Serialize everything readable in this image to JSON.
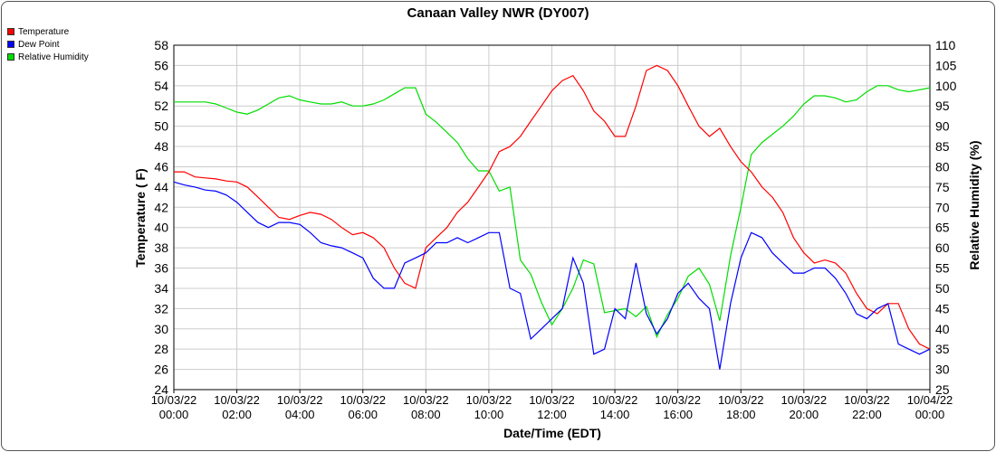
{
  "chart_data": {
    "type": "line",
    "title": "Canaan Valley NWR (DY007)",
    "xlabel": "Date/Time (EDT)",
    "ylabel_left": "Temperature ( F)",
    "ylabel_right": "Relative Humidity (%)",
    "ylim_left": [
      24,
      58
    ],
    "ylim_right": [
      25,
      110
    ],
    "yticks_left": [
      24,
      26,
      28,
      30,
      32,
      34,
      36,
      38,
      40,
      42,
      44,
      46,
      48,
      50,
      52,
      54,
      56,
      58
    ],
    "yticks_right": [
      25,
      30,
      35,
      40,
      45,
      50,
      55,
      60,
      65,
      70,
      75,
      80,
      85,
      90,
      95,
      100,
      105,
      110
    ],
    "xlim": [
      0,
      24
    ],
    "xticks": [
      {
        "x": 0,
        "date": "10/03/22",
        "time": "00:00"
      },
      {
        "x": 2,
        "date": "10/03/22",
        "time": "02:00"
      },
      {
        "x": 4,
        "date": "10/03/22",
        "time": "04:00"
      },
      {
        "x": 6,
        "date": "10/03/22",
        "time": "06:00"
      },
      {
        "x": 8,
        "date": "10/03/22",
        "time": "08:00"
      },
      {
        "x": 10,
        "date": "10/03/22",
        "time": "10:00"
      },
      {
        "x": 12,
        "date": "10/03/22",
        "time": "12:00"
      },
      {
        "x": 14,
        "date": "10/03/22",
        "time": "14:00"
      },
      {
        "x": 16,
        "date": "10/03/22",
        "time": "16:00"
      },
      {
        "x": 18,
        "date": "10/03/22",
        "time": "18:00"
      },
      {
        "x": 20,
        "date": "10/03/22",
        "time": "20:00"
      },
      {
        "x": 22,
        "date": "10/03/22",
        "time": "22:00"
      },
      {
        "x": 24,
        "date": "10/04/22",
        "time": "00:00"
      }
    ],
    "grid": true,
    "legend_position": "top-left",
    "series": [
      {
        "name": "Temperature",
        "axis": "left",
        "color": "#ff0000",
        "x": [
          0,
          0.33,
          0.67,
          1,
          1.33,
          1.67,
          2,
          2.33,
          2.67,
          3,
          3.33,
          3.67,
          4,
          4.33,
          4.67,
          5,
          5.33,
          5.67,
          6,
          6.33,
          6.67,
          7,
          7.33,
          7.67,
          8,
          8.33,
          8.67,
          9,
          9.33,
          9.67,
          10,
          10.33,
          10.67,
          11,
          11.33,
          11.67,
          12,
          12.33,
          12.67,
          13,
          13.33,
          13.67,
          14,
          14.33,
          14.67,
          15,
          15.33,
          15.67,
          16,
          16.33,
          16.67,
          17,
          17.33,
          17.67,
          18,
          18.33,
          18.67,
          19,
          19.33,
          19.67,
          20,
          20.33,
          20.67,
          21,
          21.33,
          21.67,
          22,
          22.33,
          22.67,
          23,
          23.33,
          23.67,
          24
        ],
        "y": [
          45.5,
          45.5,
          45.0,
          44.9,
          44.8,
          44.6,
          44.5,
          44.0,
          43.0,
          42.0,
          41.0,
          40.8,
          41.2,
          41.5,
          41.3,
          40.8,
          40.0,
          39.3,
          39.5,
          39.0,
          38.0,
          36.0,
          34.5,
          34.0,
          38.0,
          39.0,
          40.0,
          41.5,
          42.5,
          44.0,
          45.5,
          47.5,
          48.0,
          49.0,
          50.5,
          52.0,
          53.5,
          54.5,
          55.0,
          53.5,
          51.5,
          50.5,
          49.0,
          49.0,
          52.0,
          55.5,
          56.0,
          55.5,
          54.0,
          52.0,
          50.0,
          49.0,
          49.8,
          48.0,
          46.5,
          45.5,
          44.0,
          43.0,
          41.5,
          39.0,
          37.5,
          36.5,
          36.8,
          36.5,
          35.5,
          33.5,
          32.0,
          31.5,
          32.5,
          32.5,
          30.0,
          28.5,
          28.0
        ]
      },
      {
        "name": "Dew Point",
        "axis": "left",
        "color": "#0000ff",
        "x": [
          0,
          0.33,
          0.67,
          1,
          1.33,
          1.67,
          2,
          2.33,
          2.67,
          3,
          3.33,
          3.67,
          4,
          4.33,
          4.67,
          5,
          5.33,
          5.67,
          6,
          6.33,
          6.67,
          7,
          7.33,
          7.67,
          8,
          8.33,
          8.67,
          9,
          9.33,
          9.67,
          10,
          10.33,
          10.67,
          11,
          11.33,
          11.67,
          12,
          12.33,
          12.67,
          13,
          13.33,
          13.67,
          14,
          14.33,
          14.67,
          15,
          15.33,
          15.67,
          16,
          16.33,
          16.67,
          17,
          17.33,
          17.67,
          18,
          18.33,
          18.67,
          19,
          19.33,
          19.67,
          20,
          20.33,
          20.67,
          21,
          21.33,
          21.67,
          22,
          22.33,
          22.67,
          23,
          23.33,
          23.67,
          24
        ],
        "y": [
          44.5,
          44.2,
          44.0,
          43.7,
          43.6,
          43.2,
          42.5,
          41.5,
          40.5,
          40.0,
          40.5,
          40.5,
          40.3,
          39.5,
          38.5,
          38.2,
          38.0,
          37.5,
          37.0,
          35.0,
          34.0,
          34.0,
          36.5,
          37.0,
          37.5,
          38.5,
          38.5,
          39.0,
          38.5,
          39.0,
          39.5,
          39.5,
          34.0,
          33.5,
          29.0,
          30.0,
          31.0,
          32.0,
          37.0,
          34.5,
          27.5,
          28.0,
          32.0,
          31.0,
          36.5,
          31.5,
          29.5,
          31.0,
          33.5,
          34.5,
          33.0,
          32.0,
          26.0,
          32.5,
          37.0,
          39.5,
          39.0,
          37.5,
          36.5,
          35.5,
          35.5,
          36.0,
          36.0,
          35.0,
          33.5,
          31.5,
          31.0,
          32.0,
          32.5,
          28.5,
          28.0,
          27.5,
          28.0
        ]
      },
      {
        "name": "Relative Humidity",
        "axis": "right",
        "color": "#00dd00",
        "x": [
          0,
          0.33,
          0.67,
          1,
          1.33,
          1.67,
          2,
          2.33,
          2.67,
          3,
          3.33,
          3.67,
          4,
          4.33,
          4.67,
          5,
          5.33,
          5.67,
          6,
          6.33,
          6.67,
          7,
          7.33,
          7.67,
          8,
          8.33,
          8.67,
          9,
          9.33,
          9.67,
          10,
          10.33,
          10.67,
          11,
          11.33,
          11.67,
          12,
          12.33,
          12.67,
          13,
          13.33,
          13.67,
          14,
          14.33,
          14.67,
          15,
          15.33,
          15.67,
          16,
          16.33,
          16.67,
          17,
          17.33,
          17.67,
          18,
          18.33,
          18.67,
          19,
          19.33,
          19.67,
          20,
          20.33,
          20.67,
          21,
          21.33,
          21.67,
          22,
          22.33,
          22.67,
          23,
          23.33,
          23.67,
          24
        ],
        "y": [
          96.0,
          96.0,
          96.0,
          96.0,
          95.5,
          94.5,
          93.5,
          93.0,
          94.0,
          95.5,
          97.0,
          97.5,
          96.5,
          96.0,
          95.5,
          95.5,
          96.0,
          95.0,
          95.0,
          95.5,
          96.5,
          98.0,
          99.5,
          99.5,
          93.0,
          91.0,
          88.5,
          86.0,
          82.0,
          79.0,
          79.0,
          74.0,
          75.0,
          57.0,
          53.5,
          46.5,
          41.0,
          45.0,
          50.0,
          57.0,
          56.0,
          44.0,
          44.5,
          45.0,
          43.0,
          45.5,
          38.0,
          43.5,
          47.5,
          53.0,
          55.0,
          51.0,
          42.0,
          58.0,
          70.0,
          83.0,
          86.0,
          88.0,
          90.0,
          92.5,
          95.5,
          97.5,
          97.5,
          97.0,
          96.0,
          96.5,
          98.5,
          100.0,
          100.0,
          99.0,
          98.5,
          99.0,
          99.5
        ]
      }
    ]
  }
}
